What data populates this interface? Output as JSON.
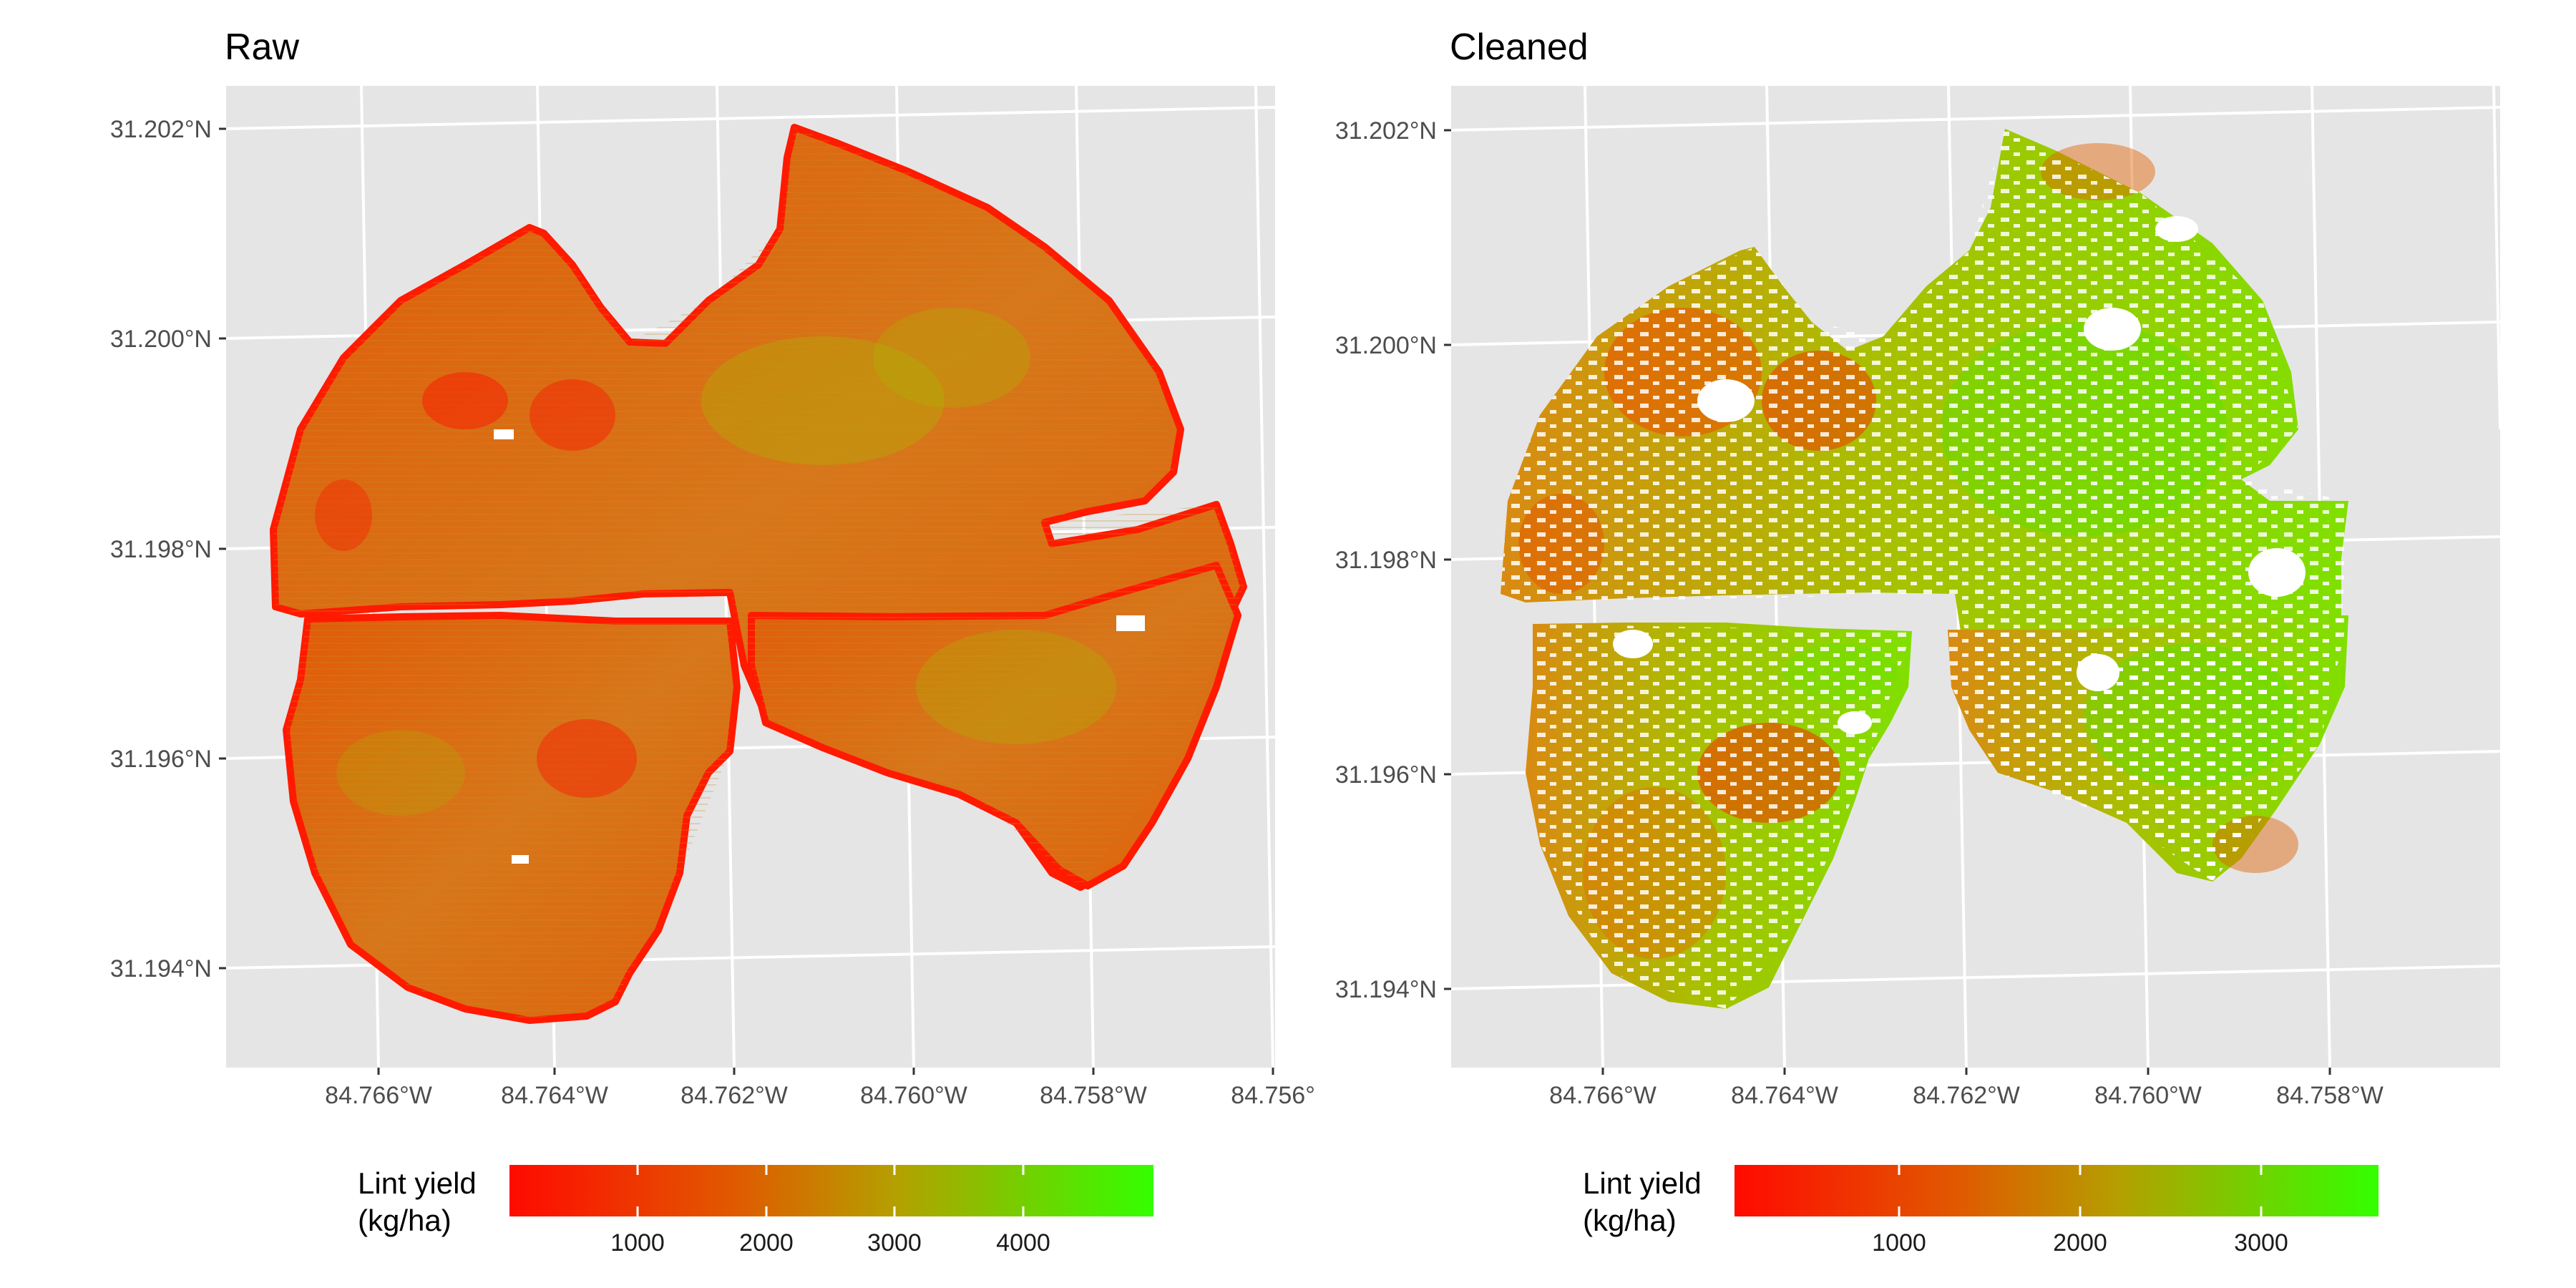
{
  "panels": [
    {
      "title": "Raw",
      "lat_labels": [
        "31.202°N",
        "31.200°N",
        "31.198°N",
        "31.196°N",
        "31.194°N"
      ],
      "lon_labels": [
        "84.766°W",
        "84.764°W",
        "84.762°W",
        "84.760°W",
        "84.758°W",
        "84.756°"
      ],
      "legend": {
        "title_line1": "Lint yield",
        "title_line2": "(kg/ha)",
        "ticks": [
          "1000",
          "2000",
          "3000",
          "4000"
        ]
      }
    },
    {
      "title": "Cleaned",
      "lat_labels": [
        "31.202°N",
        "31.200°N",
        "31.198°N",
        "31.196°N",
        "31.194°N"
      ],
      "lon_labels": [
        "84.766°W",
        "84.764°W",
        "84.762°W",
        "84.760°W",
        "84.758°W"
      ],
      "legend": {
        "title_line1": "Lint yield",
        "title_line2": "(kg/ha)",
        "ticks": [
          "1000",
          "2000",
          "3000"
        ]
      }
    }
  ],
  "colors": {
    "low": "#ff0000",
    "mid": "#d4a000",
    "high": "#33ff00",
    "panel_background": "#e5e5e5",
    "grid": "#ffffff"
  }
}
